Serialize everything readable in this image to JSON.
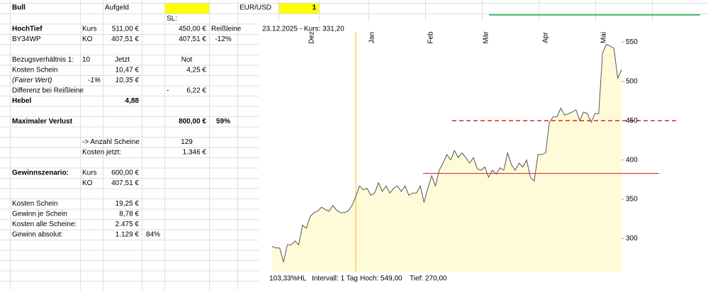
{
  "sheet": {
    "cells": {
      "A1": "Bull",
      "C1": "Aufgeld",
      "G1": "EUR/USD",
      "H1": "1",
      "E2": "SL:",
      "A3": "HochTief",
      "B3": "Kurs",
      "C3": "511,00 €",
      "E3": "450,00 €",
      "F3": "Reißleine",
      "A4": "BY34WP",
      "B4": "KO",
      "C4": "407,51 €",
      "E4": "407,51 €",
      "F4": "-12%",
      "A6": "Bezugsverhältnis 1:",
      "B6": "10",
      "C6": "Jetzt",
      "E6": "Not",
      "A7": "Kosten Schein",
      "C7": "10,47 €",
      "E7": "4,25 €",
      "A8": "(Fairer Wert)",
      "B8": "-1%",
      "C8": "10,35 €",
      "A9": "Differenz bei Reißleine",
      "E9": [
        "-",
        "6,22 €"
      ],
      "A10": "Hebel",
      "C10": "4,88",
      "A12": "Maximaler Verlust",
      "E12": "800,00 €",
      "F12": "59%",
      "B14": "-> Anzahl Scheine",
      "E14": "129",
      "B15": "Kosten jetzt:",
      "E15": "1.346 €",
      "A17": "Gewinnszenario:",
      "B17": "Kurs",
      "C17": "600,00 €",
      "B18": "KO",
      "C18": "407,51 €",
      "A20": "Kosten Schein",
      "C20": "19,25 €",
      "A21": "Gewinn je Schein",
      "C21": "8,78 €",
      "A22": "Kosten alle Scheine:",
      "C22": "2.475 €",
      "A23": "Gewinn absolut:",
      "C23": "1.129 €",
      "D23": "84%"
    }
  },
  "chart": {
    "header": "23.12.2025  -  Kurs: 331,20",
    "months": [
      "Dez",
      "Jan",
      "Feb",
      "Mär",
      "Apr",
      "Mai"
    ],
    "ylim": [
      258,
      563
    ],
    "yticks": [
      300,
      350,
      400,
      450,
      500,
      550
    ],
    "levels": [
      450,
      383
    ],
    "values": [
      290,
      288,
      288,
      270,
      292,
      292,
      297,
      292,
      317,
      313,
      328,
      333,
      335,
      340,
      337,
      335,
      342,
      336,
      333,
      333,
      335,
      342,
      353,
      367,
      362,
      364,
      355,
      358,
      371,
      360,
      367,
      358,
      364,
      367,
      360,
      367,
      355,
      358,
      358,
      367,
      346,
      364,
      380,
      367,
      387,
      396,
      407,
      400,
      412,
      403,
      409,
      403,
      396,
      403,
      389,
      387,
      391,
      378,
      387,
      382,
      390,
      387,
      409,
      394,
      387,
      396,
      391,
      400,
      378,
      373,
      407,
      407,
      409,
      448,
      455,
      455,
      466,
      457,
      459,
      461,
      464,
      450,
      461,
      459,
      448,
      459,
      459,
      536,
      547,
      545,
      542,
      504,
      515
    ],
    "footer": [
      "103,33%HL",
      "Intervall: 1 Tag",
      "Hoch:  549,00",
      "Tief:  270,00"
    ]
  }
}
